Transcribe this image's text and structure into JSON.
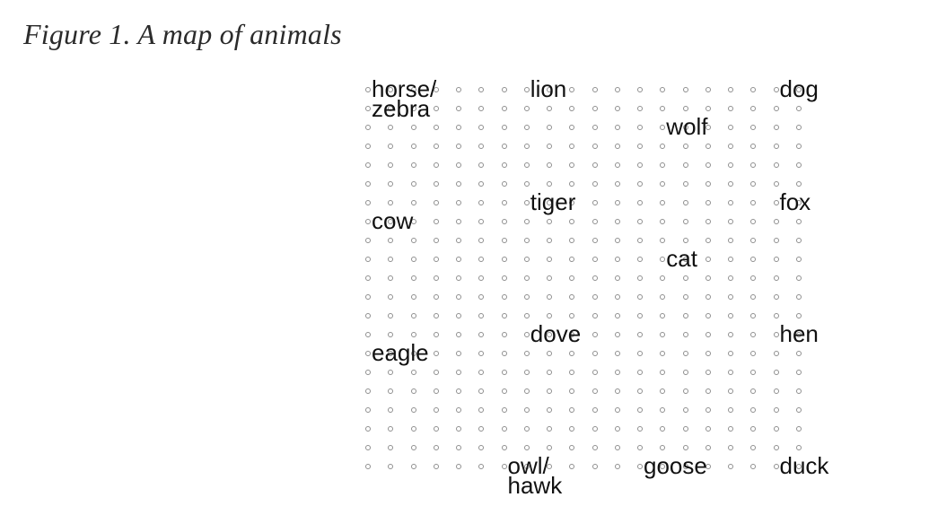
{
  "figure": {
    "caption": "Figure 1. A map of animals"
  },
  "grid": {
    "rows": 21,
    "columns": 20,
    "dot_color": "#8f8f8f"
  },
  "animals": [
    {
      "name": "horse/\nzebra",
      "row": 0,
      "col": 0
    },
    {
      "name": "lion",
      "row": 0,
      "col": 7
    },
    {
      "name": "dog",
      "row": 0,
      "col": 18
    },
    {
      "name": "wolf",
      "row": 2,
      "col": 13
    },
    {
      "name": "tiger",
      "row": 6,
      "col": 7
    },
    {
      "name": "fox",
      "row": 6,
      "col": 18
    },
    {
      "name": "cow",
      "row": 7,
      "col": 0
    },
    {
      "name": "cat",
      "row": 9,
      "col": 13
    },
    {
      "name": "dove",
      "row": 13,
      "col": 7
    },
    {
      "name": "hen",
      "row": 13,
      "col": 18
    },
    {
      "name": "eagle",
      "row": 14,
      "col": 0
    },
    {
      "name": "owl/\nhawk",
      "row": 20,
      "col": 6
    },
    {
      "name": "goose",
      "row": 20,
      "col": 12
    },
    {
      "name": "duck",
      "row": 20,
      "col": 18
    }
  ]
}
